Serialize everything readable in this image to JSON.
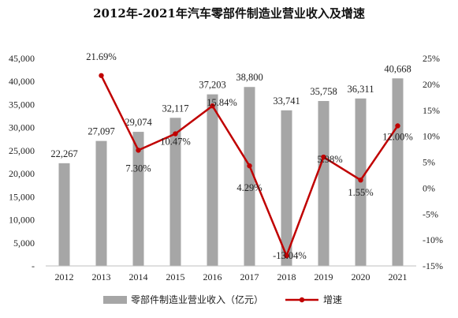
{
  "chart_data": {
    "type": "bar",
    "title": "2012年-2021年汽车零部件制造业营业收入及增速",
    "categories": [
      "2012",
      "2013",
      "2014",
      "2015",
      "2016",
      "2017",
      "2018",
      "2019",
      "2020",
      "2021"
    ],
    "series": [
      {
        "name": "零部件制造业营业收入（亿元）",
        "type": "bar",
        "axis": "left",
        "values": [
          22267,
          27097,
          29074,
          32117,
          37203,
          38800,
          33741,
          35758,
          36311,
          40668
        ],
        "labels": [
          "22,267",
          "27,097",
          "29,074",
          "32,117",
          "37,203",
          "38,800",
          "33,741",
          "35,758",
          "36,311",
          "40,668"
        ],
        "color": "#a6a6a6"
      },
      {
        "name": "增速",
        "type": "line",
        "axis": "right",
        "values": [
          null,
          21.69,
          7.3,
          10.47,
          15.84,
          4.29,
          -13.04,
          5.98,
          1.55,
          12.0
        ],
        "labels": [
          "",
          "21.69%",
          "7.30%",
          "10.47%",
          "15.84%",
          "4.29%",
          "-13.04%",
          "5.98%",
          "1.55%",
          "12.00%"
        ],
        "color": "#c00000"
      }
    ],
    "left_axis": {
      "ylim": [
        0,
        45000
      ],
      "ticks": [
        0,
        5000,
        10000,
        15000,
        20000,
        25000,
        30000,
        35000,
        40000,
        45000
      ],
      "tick_labels": [
        "-",
        "5,000",
        "10,000",
        "15,000",
        "20,000",
        "25,000",
        "30,000",
        "35,000",
        "40,000",
        "45,000"
      ]
    },
    "right_axis": {
      "ylim": [
        -15,
        25
      ],
      "ticks": [
        -15,
        -10,
        -5,
        0,
        5,
        10,
        15,
        20,
        25
      ],
      "tick_labels": [
        "-15%",
        "-10%",
        "-5%",
        "0%",
        "5%",
        "10%",
        "15%",
        "20%",
        "25%"
      ]
    },
    "grid": false,
    "legend_position": "bottom"
  }
}
